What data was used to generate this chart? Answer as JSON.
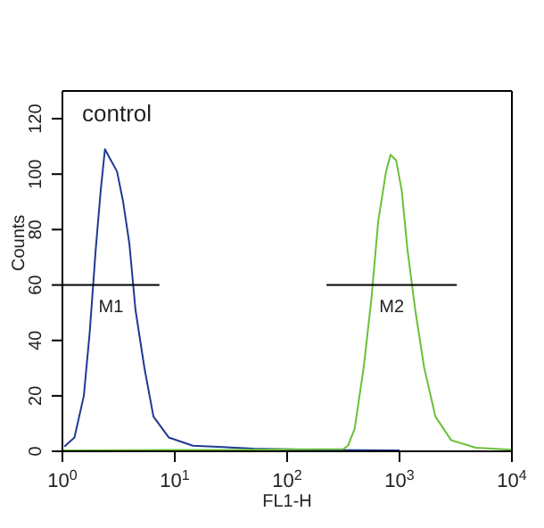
{
  "chart_data": {
    "type": "line",
    "xlabel": "FL1-H",
    "ylabel": "Counts",
    "log": "x",
    "marker": "none",
    "line_style": "solid",
    "xlim": [
      1,
      10000
    ],
    "xticks": [
      {
        "value": 1,
        "label": "10$^{0}$"
      },
      {
        "value": 10,
        "label": "10$^{1}$"
      },
      {
        "value": 100,
        "label": "10$^{2}$"
      },
      {
        "value": 1000,
        "label": "10$^{3}$"
      },
      {
        "value": 10000,
        "label": "10$^{4}$"
      }
    ],
    "ylim": [
      0,
      130
    ],
    "yticks": [
      0,
      20,
      40,
      60,
      80,
      100,
      120
    ],
    "series": [
      {
        "color": "#1f3a93",
        "x": [
          1.04,
          1.28,
          1.55,
          1.75,
          1.98,
          2.19,
          2.39,
          2.7,
          3.06,
          3.47,
          3.94,
          4.47,
          5.37,
          6.46,
          8.83,
          14.5,
          50,
          200,
          1000
        ],
        "values": [
          1.7,
          5,
          20,
          43,
          73,
          94,
          109,
          105,
          101,
          90,
          75,
          51,
          30,
          12.5,
          5,
          2,
          1,
          0.5,
          0.3
        ]
      },
      {
        "color": "#6cbf3a",
        "x": [
          1,
          10,
          30,
          100,
          316,
          347,
          398,
          479,
          562,
          646,
          759,
          832,
          933,
          1047,
          1175,
          1380,
          1660,
          2089,
          2884,
          4786,
          10000
        ],
        "values": [
          0.3,
          0.5,
          0.5,
          0.7,
          0.8,
          2,
          8,
          30,
          55,
          83,
          101,
          107,
          105,
          94,
          73,
          51,
          30,
          12.5,
          4,
          1.3,
          0.6
        ]
      },
      {
        "name": "M1",
        "color": "#000000",
        "x": [
          1,
          7.3
        ],
        "values": [
          60,
          60
        ]
      },
      {
        "name": "M2",
        "color": "#000000",
        "x": [
          224,
          3236
        ],
        "values": [
          60,
          60
        ]
      }
    ],
    "annotations": [
      "control"
    ]
  }
}
